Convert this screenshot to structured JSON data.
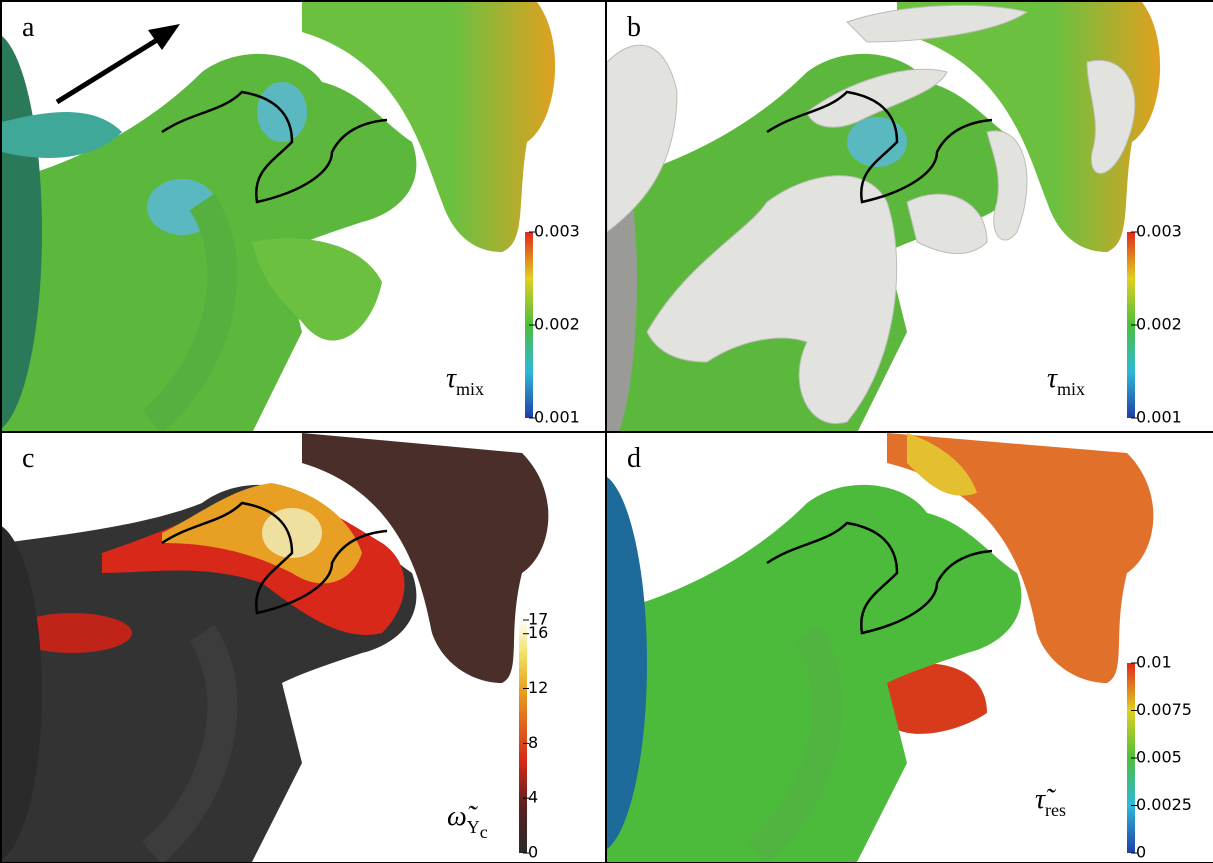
{
  "panels": [
    {
      "label": "a",
      "colorbar": {
        "symbol": "τ",
        "subscript": "mix",
        "range": [
          0.001,
          0.003
        ],
        "ticks": [
          0.001,
          0.002,
          0.003
        ]
      }
    },
    {
      "label": "b",
      "colorbar": {
        "symbol": "τ",
        "subscript": "mix",
        "range": [
          0.001,
          0.003
        ],
        "ticks": [
          0.001,
          0.002,
          0.003
        ]
      }
    },
    {
      "label": "c",
      "colorbar": {
        "symbol": "ω̃",
        "subscript": "Y",
        "subsubscript": "c",
        "range": [
          0,
          17
        ],
        "ticks": [
          0,
          4,
          8,
          12,
          16,
          17
        ]
      }
    },
    {
      "label": "d",
      "colorbar": {
        "symbol": "τ̃",
        "subscript": "res",
        "range": [
          0,
          0.01
        ],
        "ticks": [
          0,
          0.0025,
          0.005,
          0.0075,
          0.01
        ]
      }
    }
  ]
}
